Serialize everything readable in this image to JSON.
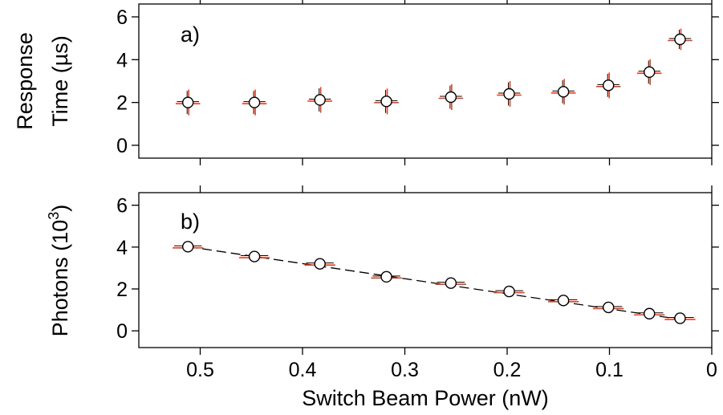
{
  "chart_data": [
    {
      "type": "scatter",
      "panel_label": "a)",
      "ylabel_lines": [
        "Response",
        "Time (µs)"
      ],
      "xlabel": "",
      "xlim": [
        0.56,
        0.0
      ],
      "ylim": [
        -0.6,
        6.6
      ],
      "x_ticks": [
        0.5,
        0.4,
        0.3,
        0.2,
        0.1,
        0
      ],
      "x_tick_labels": [],
      "y_ticks": [
        0,
        2,
        4,
        6
      ],
      "y_tick_labels": [
        "0",
        "2",
        "4",
        "6"
      ],
      "grid": false,
      "series": [
        {
          "marker": "open-circle",
          "error_bar_color": "#e2401c",
          "x": [
            0.512,
            0.447,
            0.383,
            0.318,
            0.255,
            0.198,
            0.145,
            0.101,
            0.061,
            0.031
          ],
          "y": [
            2.0,
            2.0,
            2.12,
            2.05,
            2.25,
            2.4,
            2.5,
            2.8,
            3.42,
            4.95
          ],
          "x_err": [
            0.012,
            0.012,
            0.012,
            0.012,
            0.012,
            0.012,
            0.012,
            0.012,
            0.012,
            0.012
          ],
          "y_err": [
            0.6,
            0.6,
            0.6,
            0.6,
            0.6,
            0.6,
            0.6,
            0.6,
            0.6,
            0.5
          ]
        }
      ]
    },
    {
      "type": "scatter",
      "panel_label": "b)",
      "ylabel": "Photons (10",
      "ylabel_sup": "3",
      "ylabel_end": ")",
      "xlabel": "Switch Beam Power (nW)",
      "xlim": [
        0.56,
        0.0
      ],
      "ylim": [
        -0.8,
        6.6
      ],
      "x_ticks": [
        0.5,
        0.4,
        0.3,
        0.2,
        0.1,
        0
      ],
      "x_tick_labels": [
        "0.5",
        "0.4",
        "0.3",
        "0.2",
        "0.1",
        "0"
      ],
      "y_ticks": [
        0,
        2,
        4,
        6
      ],
      "y_tick_labels": [
        "0",
        "2",
        "4",
        "6"
      ],
      "grid": false,
      "series": [
        {
          "marker": "open-circle",
          "error_bar_color": "#e2401c",
          "x": [
            0.512,
            0.447,
            0.383,
            0.318,
            0.255,
            0.198,
            0.145,
            0.101,
            0.061,
            0.031
          ],
          "y": [
            4.02,
            3.55,
            3.2,
            2.58,
            2.28,
            1.88,
            1.45,
            1.12,
            0.82,
            0.6
          ],
          "x_err": [
            0.015,
            0.015,
            0.015,
            0.015,
            0.015,
            0.015,
            0.015,
            0.015,
            0.015,
            0.015
          ],
          "y_err": [
            0.12,
            0.12,
            0.12,
            0.12,
            0.12,
            0.12,
            0.12,
            0.12,
            0.12,
            0.12
          ]
        }
      ],
      "fit_line": {
        "style": "dashed",
        "x": [
          0.512,
          0.031
        ],
        "y": [
          4.02,
          0.55
        ]
      }
    }
  ]
}
